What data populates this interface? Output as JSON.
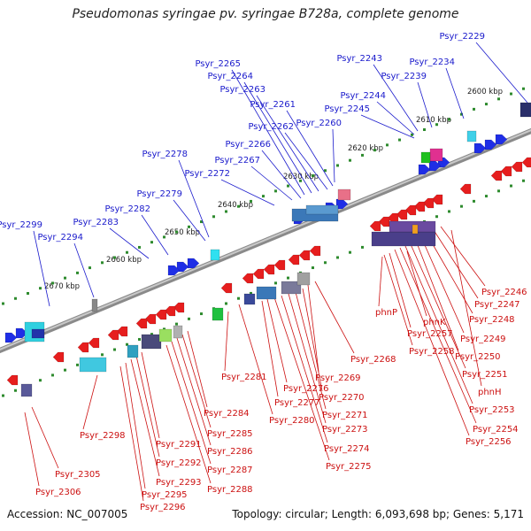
{
  "title": "Pseudomonas syringae pv. syringae B728a, complete genome",
  "accession": "Accession: NC_007005",
  "topology": "Topology: circular; Length: 6,093,698 bp; Genes: 5,171",
  "ticks": [
    "2600 kbp",
    "2610 kbp",
    "2620 kbp",
    "2630 kbp",
    "2640 kbp",
    "2650 kbp",
    "2660 kbp",
    "2670 kbp"
  ],
  "blue_labels": [
    "Psyr_2229",
    "Psyr_2234",
    "Psyr_2239",
    "Psyr_2243",
    "Psyr_2244",
    "Psyr_2245",
    "Psyr_2260",
    "Psyr_2261",
    "Psyr_2262",
    "Psyr_2263",
    "Psyr_2264",
    "Psyr_2265",
    "Psyr_2266",
    "Psyr_2267",
    "Psyr_2272",
    "Psyr_2278",
    "Psyr_2279",
    "Psyr_2282",
    "Psyr_2283",
    "Psyr_2294",
    "Psyr_2299"
  ],
  "red_labels": [
    "Psyr_2246",
    "Psyr_2247",
    "Psyr_2248",
    "Psyr_2249",
    "Psyr_2250",
    "Psyr_2251",
    "phnH",
    "Psyr_2253",
    "Psyr_2254",
    "Psyr_2256",
    "phnK",
    "Psyr_2257",
    "Psyr_2258",
    "phnP",
    "Psyr_2268",
    "Psyr_2269",
    "Psyr_2270",
    "Psyr_2271",
    "Psyr_2273",
    "Psyr_2274",
    "Psyr_2275",
    "Psyr_2276",
    "Psyr_2277",
    "Psyr_2280",
    "Psyr_2281",
    "Psyr_2284",
    "Psyr_2285",
    "Psyr_2286",
    "Psyr_2287",
    "Psyr_2288",
    "Psyr_2291",
    "Psyr_2292",
    "Psyr_2293",
    "Psyr_2295",
    "Psyr_2296",
    "Psyr_2298",
    "Psyr_2305",
    "Psyr_2306"
  ],
  "colors": {
    "blue_label": "#1a1acc",
    "red_label": "#cc1111",
    "forward": "#1f2ee6",
    "reverse": "#e61e1e",
    "backbone": "#8a8a8a",
    "tick": "#2e8b2e"
  }
}
